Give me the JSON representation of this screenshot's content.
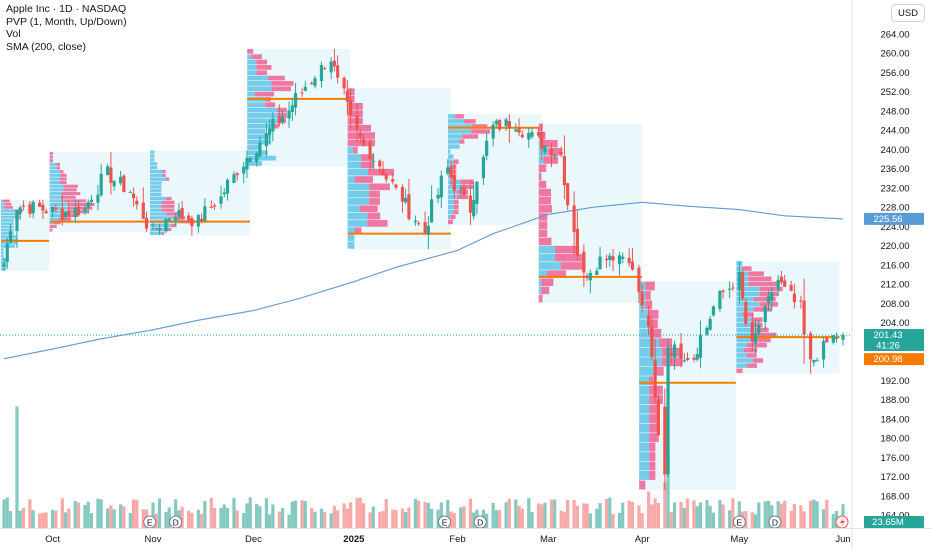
{
  "legend": {
    "title": "Apple Inc · 1D · NASDAQ",
    "indicator_pvp": "PVP (1, Month, Up/Down)",
    "indicator_vol": "Vol",
    "indicator_sma": "SMA (200, close)"
  },
  "currency_button": "USD",
  "price_badges": {
    "last_price": "201.43",
    "countdown": "41:26",
    "sma_value": "225.56",
    "poc_value": "200.98",
    "volume": "23.65M"
  },
  "colors": {
    "up": "#26a69a",
    "down": "#ef5350",
    "up_vol": "#84c9c0",
    "down_vol": "#f7a9a7",
    "sma": "#5b9bd5",
    "poc": "#f57c00",
    "profile_box": "#e3f6fb",
    "profile_up": "#5fc4e8",
    "profile_down": "#f06292"
  },
  "events": [
    "E",
    "D",
    "E",
    "D",
    "E",
    "D"
  ],
  "chart_data": {
    "type": "candlestick",
    "title": "Apple Inc · 1D · NASDAQ",
    "y_axis": {
      "min": 162,
      "max": 266,
      "ticks": [
        "264.00",
        "260.00",
        "256.00",
        "252.00",
        "248.00",
        "244.00",
        "240.00",
        "236.00",
        "232.00",
        "228.00",
        "224.00",
        "220.00",
        "216.00",
        "212.00",
        "208.00",
        "204.00",
        "200.00",
        "196.00",
        "192.00",
        "188.00",
        "184.00",
        "180.00",
        "176.00",
        "172.00",
        "168.00",
        "164.00"
      ]
    },
    "x_axis": {
      "labels": [
        "Oct",
        "Nov",
        "Dec",
        "2025",
        "Feb",
        "Mar",
        "Apr",
        "May",
        "Jun"
      ]
    },
    "sma_200": [
      [
        "2024-09-16",
        196.5
      ],
      [
        "2024-10-01",
        198.5
      ],
      [
        "2024-10-15",
        200.5
      ],
      [
        "2024-11-01",
        202.5
      ],
      [
        "2024-11-15",
        204.5
      ],
      [
        "2024-12-02",
        206.5
      ],
      [
        "2024-12-16",
        209
      ],
      [
        "2025-01-02",
        212.5
      ],
      [
        "2025-01-15",
        215.5
      ],
      [
        "2025-02-03",
        219
      ],
      [
        "2025-02-14",
        222.5
      ],
      [
        "2025-03-03",
        226.5
      ],
      [
        "2025-03-17",
        228
      ],
      [
        "2025-04-01",
        229
      ],
      [
        "2025-04-15",
        228.2
      ],
      [
        "2025-05-01",
        227.5
      ],
      [
        "2025-05-15",
        226.2
      ],
      [
        "2025-06-02",
        225.56
      ]
    ],
    "monthly_poc": [
      {
        "month": "2024-09",
        "price": 221.0
      },
      {
        "month": "2024-10",
        "price": 225.0
      },
      {
        "month": "2024-11",
        "price": 225.0
      },
      {
        "month": "2024-12",
        "price": 250.5
      },
      {
        "month": "2025-01",
        "price": 222.5
      },
      {
        "month": "2025-02",
        "price": 244.5
      },
      {
        "month": "2025-03",
        "price": 213.5
      },
      {
        "month": "2025-04",
        "price": 191.5
      },
      {
        "month": "2025-05",
        "price": 200.98
      }
    ],
    "ohlc_anchor_closes": [
      [
        "2024-09-16",
        216.3
      ],
      [
        "2024-09-20",
        228.2
      ],
      [
        "2024-09-27",
        227.8
      ],
      [
        "2024-10-04",
        226.8
      ],
      [
        "2024-10-11",
        227.6
      ],
      [
        "2024-10-18",
        235.0
      ],
      [
        "2024-10-25",
        231.4
      ],
      [
        "2024-11-01",
        222.9
      ],
      [
        "2024-11-08",
        226.9
      ],
      [
        "2024-11-15",
        225.0
      ],
      [
        "2024-11-22",
        229.9
      ],
      [
        "2024-11-29",
        237.3
      ],
      [
        "2024-12-06",
        242.8
      ],
      [
        "2024-12-13",
        248.1
      ],
      [
        "2024-12-20",
        254.5
      ],
      [
        "2024-12-26",
        259.0
      ],
      [
        "2025-01-03",
        243.4
      ],
      [
        "2025-01-10",
        236.9
      ],
      [
        "2025-01-17",
        229.9
      ],
      [
        "2025-01-24",
        222.8
      ],
      [
        "2025-01-31",
        236.0
      ],
      [
        "2025-02-07",
        227.6
      ],
      [
        "2025-02-14",
        244.6
      ],
      [
        "2025-02-21",
        245.6
      ],
      [
        "2025-02-28",
        241.8
      ],
      [
        "2025-03-07",
        239.1
      ],
      [
        "2025-03-14",
        213.5
      ],
      [
        "2025-03-21",
        218.3
      ],
      [
        "2025-03-28",
        217.9
      ],
      [
        "2025-04-03",
        203.2
      ],
      [
        "2025-04-08",
        172.4
      ],
      [
        "2025-04-09",
        198.9
      ],
      [
        "2025-04-17",
        196.9
      ],
      [
        "2025-04-25",
        209.3
      ],
      [
        "2025-05-01",
        213.3
      ],
      [
        "2025-05-05",
        198.9
      ],
      [
        "2025-05-13",
        212.9
      ],
      [
        "2025-05-20",
        206.9
      ],
      [
        "2025-05-23",
        195.3
      ],
      [
        "2025-05-30",
        200.9
      ],
      [
        "2025-06-02",
        201.43
      ]
    ],
    "volume_unit": "M"
  }
}
